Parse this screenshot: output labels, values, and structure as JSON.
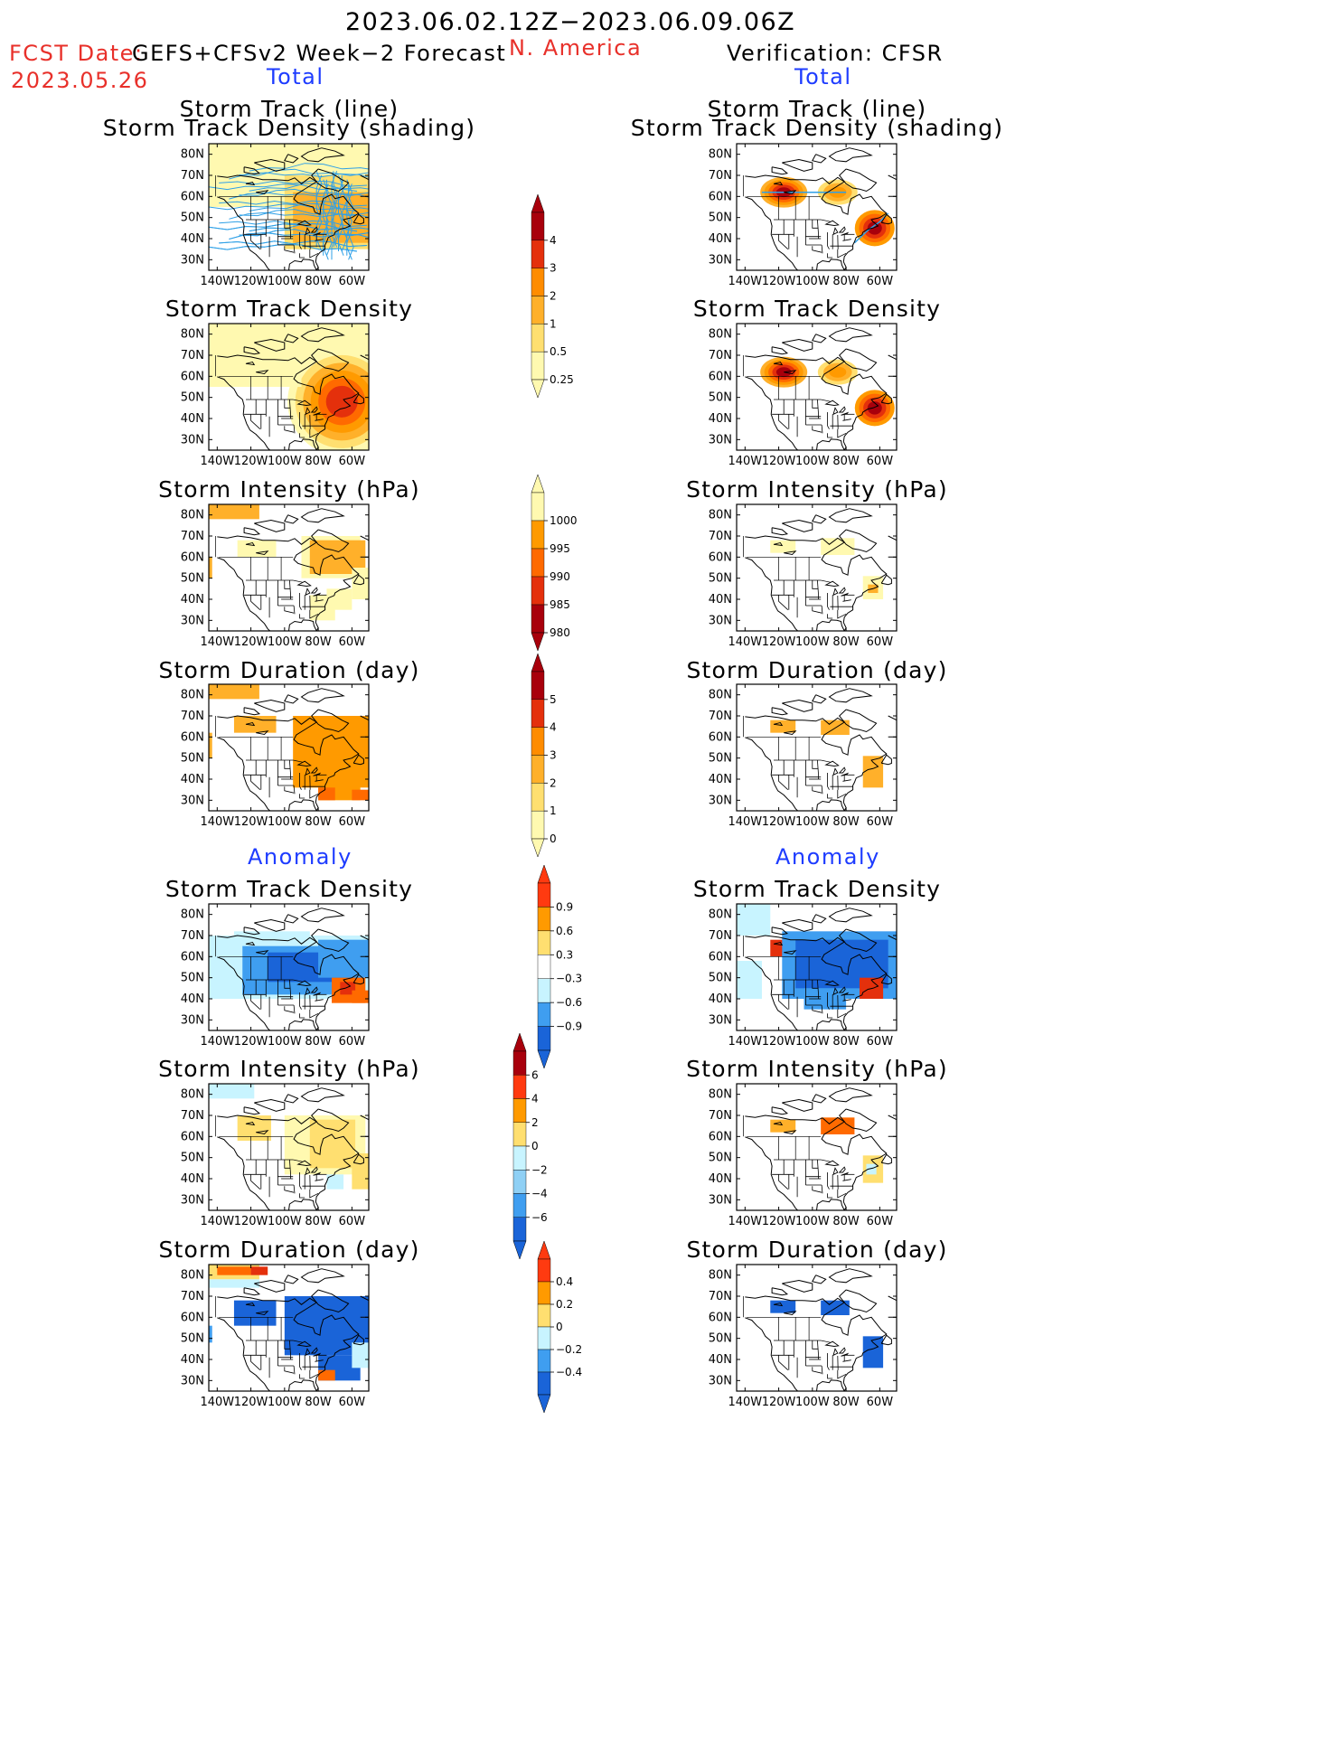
{
  "header": {
    "period": "2023.06.02.12Z−2023.06.09.06Z",
    "region": "N. America",
    "fcst_label_prefix": "FCST Date:",
    "fcst_product": "GEFS+CFSv2 Week−2 Forecast",
    "fcst_date": "2023.05.26",
    "verification": "Verification: CFSR"
  },
  "sections": {
    "total_left": "Total",
    "total_right": "Total",
    "anomaly_left": "Anomaly",
    "anomaly_right": "Anomaly"
  },
  "panel_titles": {
    "track_line": "Storm Track (line)",
    "track_shading": "Storm Track Density (shading)",
    "density": "Storm Track Density",
    "intensity": "Storm Intensity (hPa)",
    "duration": "Storm Duration (day)"
  },
  "map_axes": {
    "lat_labels": [
      "80N",
      "70N",
      "60N",
      "50N",
      "40N",
      "30N"
    ],
    "lon_labels": [
      "140W",
      "120W",
      "100W",
      "80W",
      "60W"
    ]
  },
  "colorbars": {
    "density_total": [
      "4",
      "3",
      "2",
      "1",
      "0.5",
      "0.25"
    ],
    "intensity_total": [
      "1000",
      "995",
      "990",
      "985",
      "980"
    ],
    "duration_total": [
      "5",
      "4",
      "3",
      "2",
      "1",
      "0"
    ],
    "density_anom": [
      "0.9",
      "0.6",
      "0.3",
      "−0.3",
      "−0.6",
      "−0.9"
    ],
    "intensity_anom": [
      "6",
      "4",
      "2",
      "0",
      "−2",
      "−4",
      "−6"
    ],
    "duration_anom": [
      "0.4",
      "0.2",
      "0",
      "−0.2",
      "−0.4"
    ]
  },
  "colors": {
    "title_red": "#e8302a",
    "title_blue": "#1e3cff",
    "track_line": "#2fa0e6",
    "pos_scale": [
      "#fff9b0",
      "#ffdf70",
      "#ffb02a",
      "#ff9a00",
      "#ff6a00",
      "#e4300c",
      "#a8000c"
    ],
    "neg_scale": [
      "#c8f4ff",
      "#8fd0f5",
      "#3f9ef0",
      "#1a64d8"
    ]
  }
}
